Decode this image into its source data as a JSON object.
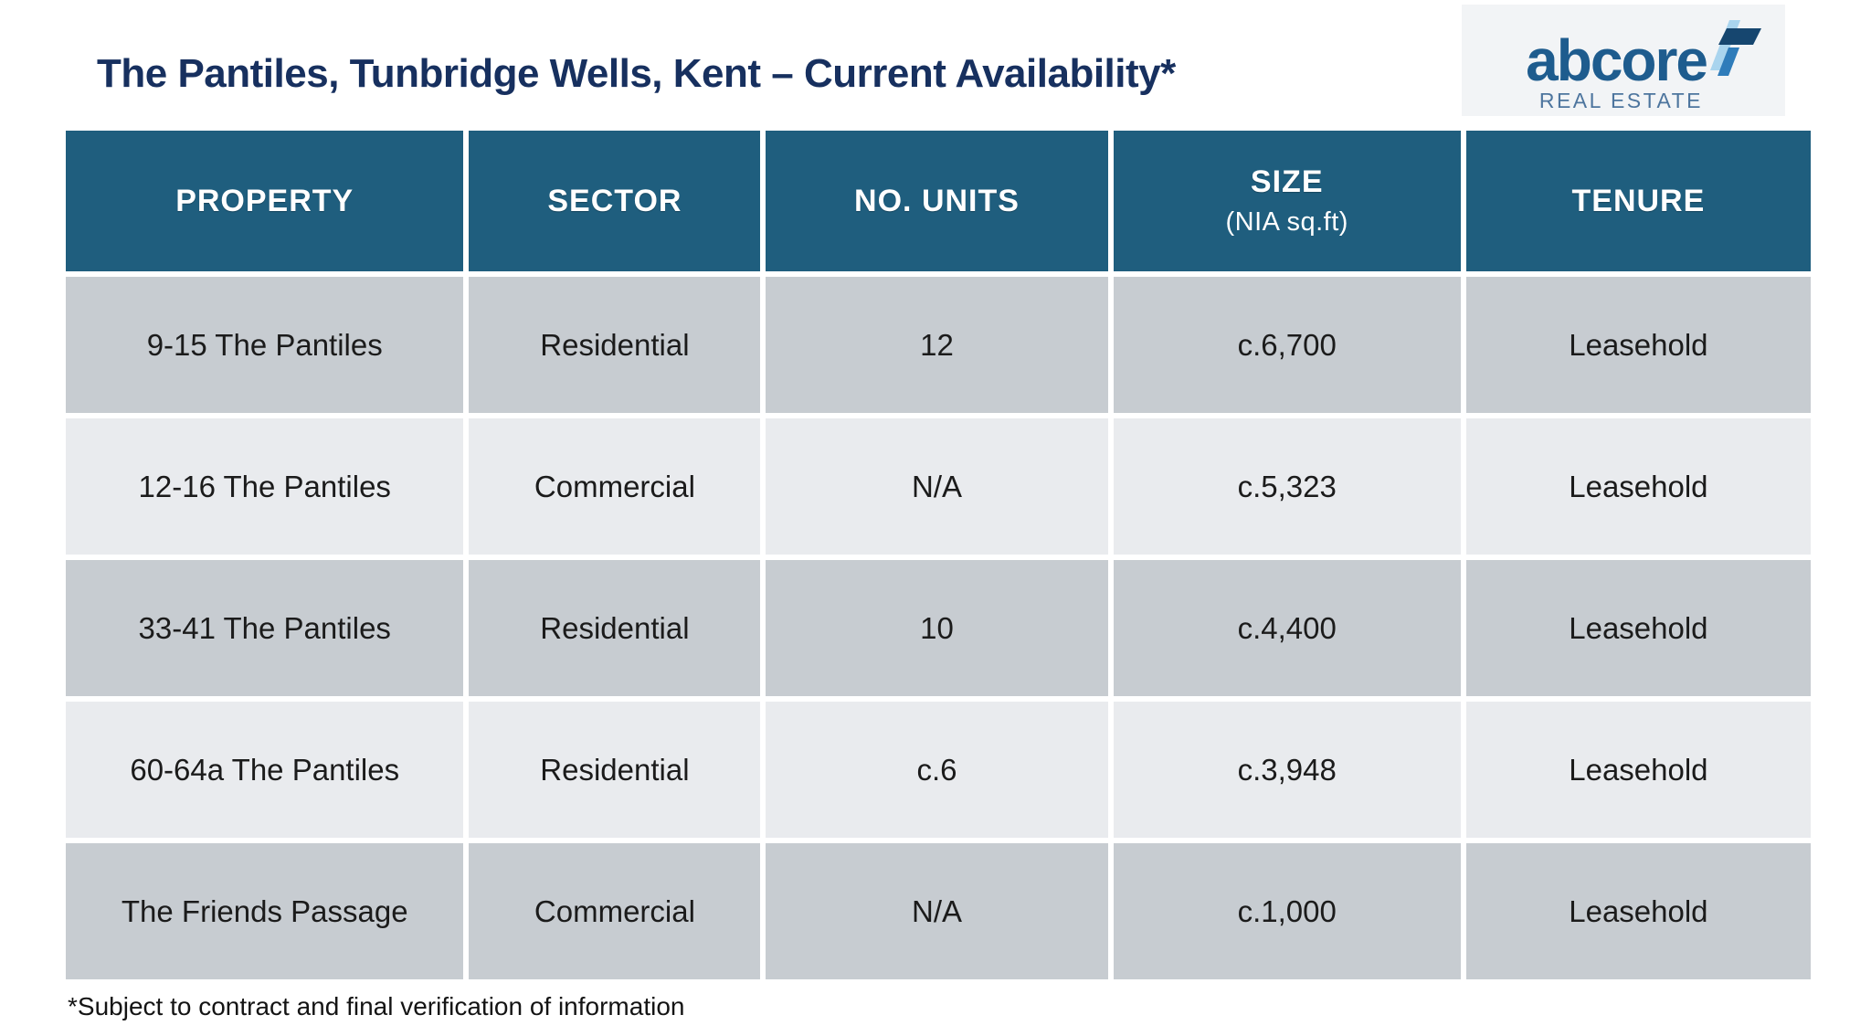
{
  "title": "The Pantiles, Tunbridge Wells, Kent – Current Availability*",
  "logo": {
    "brand": "abcore",
    "tagline": "REAL ESTATE",
    "icon": "abcore-arrow-icon"
  },
  "table": {
    "columns": [
      "PROPERTY",
      "SECTOR",
      "NO. UNITS",
      "SIZE",
      "TENURE"
    ],
    "size_subheader": "(NIA sq.ft)",
    "rows": [
      [
        "9-15 The Pantiles",
        "Residential",
        "12",
        "c.6,700",
        "Leasehold"
      ],
      [
        "12-16 The Pantiles",
        "Commercial",
        "N/A",
        "c.5,323",
        "Leasehold"
      ],
      [
        "33-41 The Pantiles",
        "Residential",
        "10",
        "c.4,400",
        "Leasehold"
      ],
      [
        "60-64a The Pantiles",
        "Residential",
        "c.6",
        "c.3,948",
        "Leasehold"
      ],
      [
        "The Friends Passage",
        "Commercial",
        "N/A",
        "c.1,000",
        "Leasehold"
      ]
    ]
  },
  "footnote": "*Subject to contract and final verification of information",
  "colors": {
    "title_navy": "#17305f",
    "header_bg": "#1f5e7e",
    "header_text": "#ffffff",
    "row_dark": "#c7ccd1",
    "row_light": "#e9ebee",
    "cell_text": "#1b1b1b",
    "brand_blue": "#1e5c8e",
    "tagline_blue": "#4d759e",
    "icon_light_blue": "#a9d4ee",
    "icon_navy": "#16466f",
    "icon_mid_blue": "#2f7cba",
    "logo_box_bg": "#f2f4f6"
  }
}
